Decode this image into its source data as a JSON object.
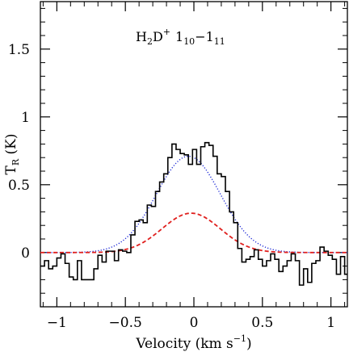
{
  "chart_data": {
    "type": "line",
    "title": "",
    "annotation": {
      "main": "H",
      "sub1": "2",
      "mid": "D",
      "sup": "+",
      "level1_main": "1",
      "level1_sub": "10",
      "dash": "−",
      "level2_main": "1",
      "level2_sub": "11"
    },
    "xlabel": {
      "text_before": "Velocity (km s",
      "exponent": "−1",
      "text_after": ")"
    },
    "ylabel": {
      "main": "T",
      "sub": "R",
      "unit": " (K)"
    },
    "xlim": [
      -1.12,
      1.12
    ],
    "ylim": [
      -0.4,
      1.85
    ],
    "x_ticks": [
      {
        "value": -1,
        "label": "−1"
      },
      {
        "value": -0.5,
        "label": "−0.5"
      },
      {
        "value": 0,
        "label": "0"
      },
      {
        "value": 0.5,
        "label": "0.5"
      },
      {
        "value": 1,
        "label": "1"
      }
    ],
    "y_ticks": [
      {
        "value": 0,
        "label": "0"
      },
      {
        "value": 0.5,
        "label": "0.5"
      },
      {
        "value": 1,
        "label": "1"
      },
      {
        "value": 1.5,
        "label": "1.5"
      }
    ],
    "grid": false,
    "series": [
      {
        "style": "step",
        "color": "#000000",
        "x": [
          -1.12,
          -1.09,
          -1.06,
          -1.03,
          -1.0,
          -0.97,
          -0.94,
          -0.91,
          -0.88,
          -0.85,
          -0.82,
          -0.79,
          -0.76,
          -0.73,
          -0.7,
          -0.67,
          -0.64,
          -0.61,
          -0.58,
          -0.55,
          -0.52,
          -0.49,
          -0.46,
          -0.43,
          -0.4,
          -0.37,
          -0.34,
          -0.31,
          -0.28,
          -0.25,
          -0.22,
          -0.19,
          -0.16,
          -0.13,
          -0.1,
          -0.07,
          -0.04,
          -0.01,
          0.02,
          0.05,
          0.08,
          0.11,
          0.14,
          0.17,
          0.2,
          0.23,
          0.26,
          0.29,
          0.32,
          0.35,
          0.38,
          0.41,
          0.44,
          0.47,
          0.5,
          0.53,
          0.56,
          0.59,
          0.62,
          0.65,
          0.68,
          0.71,
          0.74,
          0.77,
          0.8,
          0.83,
          0.86,
          0.89,
          0.92,
          0.95,
          0.98,
          1.01,
          1.04,
          1.07,
          1.1
        ],
        "values": [
          -0.1,
          -0.06,
          -0.12,
          -0.1,
          -0.04,
          -0.01,
          -0.08,
          -0.18,
          -0.2,
          -0.06,
          -0.2,
          -0.2,
          -0.2,
          -0.12,
          -0.02,
          -0.07,
          0.01,
          0.01,
          -0.06,
          0.02,
          0.01,
          0.0,
          0.13,
          0.23,
          0.24,
          0.22,
          0.35,
          0.34,
          0.45,
          0.52,
          0.58,
          0.7,
          0.8,
          0.76,
          0.73,
          0.72,
          0.65,
          0.76,
          0.65,
          0.78,
          0.81,
          0.79,
          0.71,
          0.58,
          0.56,
          0.45,
          0.3,
          0.22,
          0.03,
          -0.07,
          -0.05,
          -0.03,
          0.02,
          -0.05,
          -0.1,
          -0.06,
          -0.01,
          -0.05,
          -0.14,
          -0.1,
          -0.06,
          -0.01,
          -0.06,
          -0.24,
          -0.12,
          -0.22,
          -0.08,
          -0.06,
          0.04,
          0.01,
          -0.02,
          -0.05,
          -0.16,
          -0.03,
          -0.16
        ]
      },
      {
        "style": "dotted",
        "color": "#1f2bd6",
        "amplitude": 0.71,
        "center": -0.04,
        "fwhm": 0.55
      },
      {
        "style": "dashed",
        "color": "#e0201e",
        "amplitude": 0.29,
        "center": -0.02,
        "fwhm": 0.5
      }
    ]
  }
}
